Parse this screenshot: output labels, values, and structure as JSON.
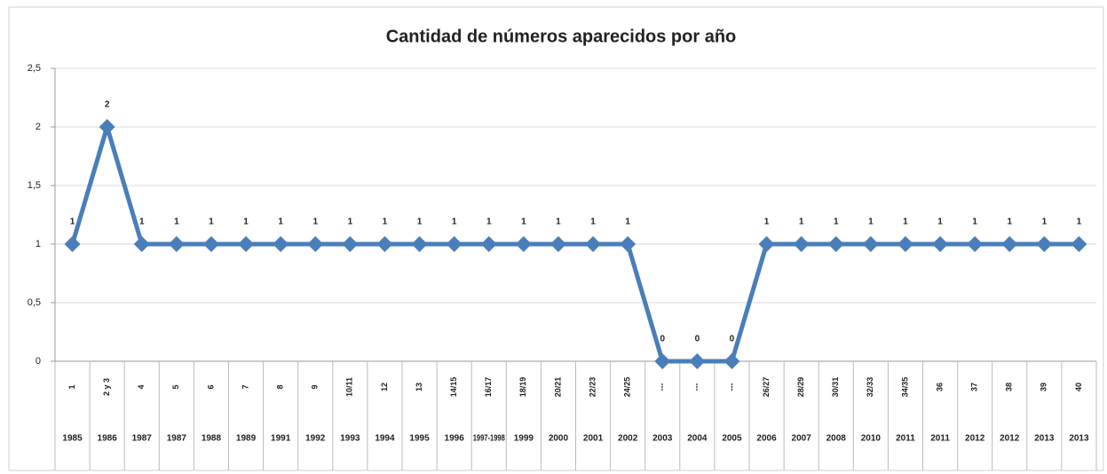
{
  "chart_data": {
    "type": "line",
    "title": "Cantidad de números aparecidos por año",
    "categories": [
      "1",
      "2 y 3",
      "4",
      "5",
      "6",
      "7",
      "8",
      "9",
      "10/11",
      "12",
      "13",
      "14/15",
      "16/17",
      "18/19",
      "20/21",
      "22/23",
      "24/25",
      "---",
      "---",
      "---",
      "26/27",
      "28/29",
      "30/31",
      "32/33",
      "34/35",
      "36",
      "37",
      "38",
      "39",
      "40"
    ],
    "category_groups": [
      "1985",
      "1986",
      "1987",
      "1987",
      "1988",
      "1989",
      "1991",
      "1992",
      "1993",
      "1994",
      "1995",
      "1996",
      "1997-1998",
      "1999",
      "2000",
      "2001",
      "2002",
      "2003",
      "2004",
      "2005",
      "2006",
      "2007",
      "2008",
      "2010",
      "2011",
      "2011",
      "2012",
      "2012",
      "2013",
      "2013"
    ],
    "values": [
      1,
      2,
      1,
      1,
      1,
      1,
      1,
      1,
      1,
      1,
      1,
      1,
      1,
      1,
      1,
      1,
      1,
      0,
      0,
      0,
      1,
      1,
      1,
      1,
      1,
      1,
      1,
      1,
      1,
      1
    ],
    "color": "#4a7ebb",
    "ylim": [
      0,
      2.5
    ],
    "yticks": [
      0,
      {
        "value": 0.5,
        "label": "0,5"
      },
      1,
      {
        "value": 1.5,
        "label": "1,5"
      },
      2,
      {
        "value": 2.5,
        "label": "2,5"
      }
    ],
    "grid": true
  }
}
